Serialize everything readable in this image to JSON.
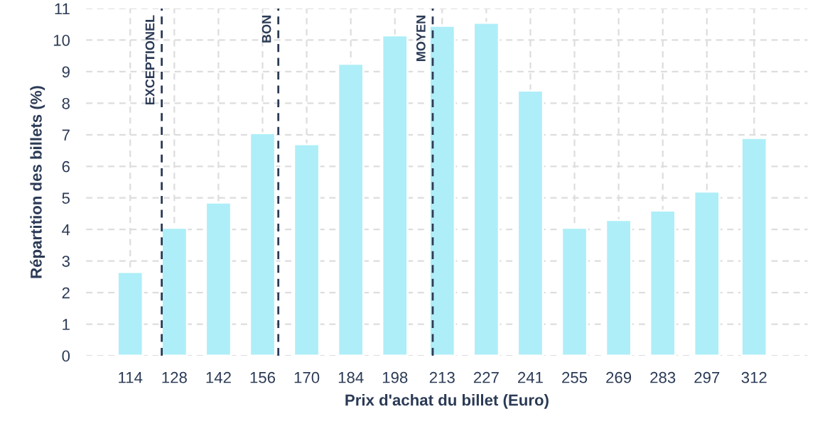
{
  "chart_data": {
    "type": "bar",
    "xlabel": "Prix d'achat du billet (Euro)",
    "ylabel": "Répartition des billets (%)",
    "x": [
      114,
      128,
      142,
      156,
      170,
      184,
      198,
      213,
      227,
      241,
      255,
      269,
      283,
      297,
      312
    ],
    "series": [
      {
        "color": "#aeeef8",
        "values": [
          2.65,
          4.05,
          4.85,
          7.05,
          6.7,
          9.25,
          10.15,
          10.45,
          10.55,
          8.4,
          4.05,
          4.3,
          4.6,
          5.2,
          6.9
        ]
      }
    ],
    "xlim": [
      100,
      329
    ],
    "xticks": [
      114,
      128,
      142,
      156,
      170,
      184,
      198,
      213,
      227,
      241,
      255,
      269,
      283,
      297,
      312
    ],
    "ylim": [
      0,
      11
    ],
    "yticks": [
      0,
      1,
      2,
      3,
      4,
      5,
      6,
      7,
      8,
      9,
      10,
      11
    ],
    "ref_lines": [
      {
        "axis": "x",
        "value": 124,
        "label": "EXCEPTIONEL",
        "color": "#2b3a55",
        "line_style": "dashed"
      },
      {
        "axis": "x",
        "value": 161,
        "label": "BON",
        "color": "#2b3a55",
        "line_style": "dashed"
      },
      {
        "axis": "x",
        "value": 210,
        "label": "MOYEN",
        "color": "#2b3a55",
        "line_style": "dashed"
      }
    ],
    "grid": true
  }
}
